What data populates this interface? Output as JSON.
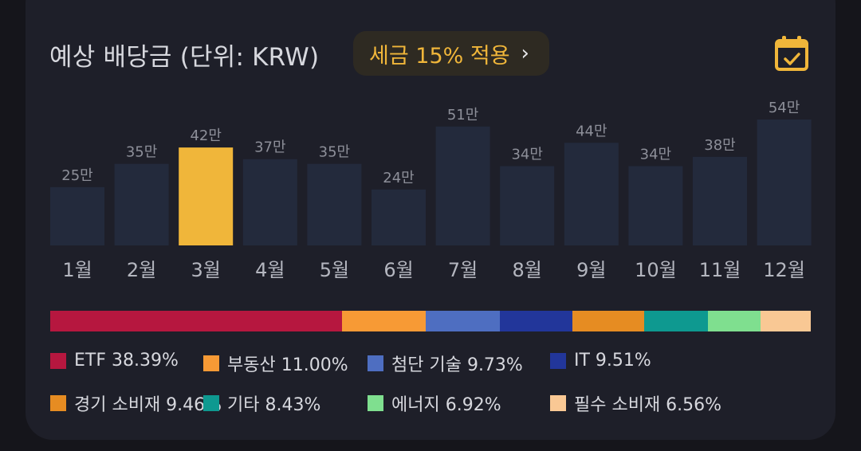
{
  "header": {
    "title": "예상 배당금 (단위: KRW)",
    "tax_button": "세금 15% 적용",
    "calendar_icon": "calendar-check-icon"
  },
  "colors": {
    "card_bg": "#1e1f29",
    "bar": "#232a3c",
    "bar_highlight": "#f0b63a",
    "label": "#8d8f99",
    "month": "#b4b6bf"
  },
  "chart_data": {
    "type": "bar",
    "categories": [
      "1월",
      "2월",
      "3월",
      "4월",
      "5월",
      "6월",
      "7월",
      "8월",
      "9월",
      "10월",
      "11월",
      "12월"
    ],
    "values": [
      25,
      35,
      42,
      37,
      35,
      24,
      51,
      34,
      44,
      34,
      38,
      54
    ],
    "value_labels": [
      "25만",
      "35만",
      "42만",
      "37만",
      "35만",
      "24만",
      "51만",
      "34만",
      "44만",
      "34만",
      "38만",
      "54만"
    ],
    "highlight_index": 2,
    "title": "예상 배당금 (단위: KRW)",
    "ylim": [
      0,
      54
    ],
    "grid": false
  },
  "allocation": [
    {
      "name": "ETF",
      "percent": "38.39%",
      "value": 38.39,
      "color": "#b6173f"
    },
    {
      "name": "부동산",
      "percent": "11.00%",
      "value": 11.0,
      "color": "#f79a35"
    },
    {
      "name": "첨단 기술",
      "percent": "9.73%",
      "value": 9.73,
      "color": "#4e6ec1"
    },
    {
      "name": "IT",
      "percent": "9.51%",
      "value": 9.51,
      "color": "#22369a"
    },
    {
      "name": "경기 소비재",
      "percent": "9.46%",
      "value": 9.46,
      "color": "#e68c22"
    },
    {
      "name": "기타",
      "percent": "8.43%",
      "value": 8.43,
      "color": "#0e9990"
    },
    {
      "name": "에너지",
      "percent": "6.92%",
      "value": 6.92,
      "color": "#7fdf8f"
    },
    {
      "name": "필수 소비재",
      "percent": "6.56%",
      "value": 6.56,
      "color": "#f9c894"
    }
  ]
}
